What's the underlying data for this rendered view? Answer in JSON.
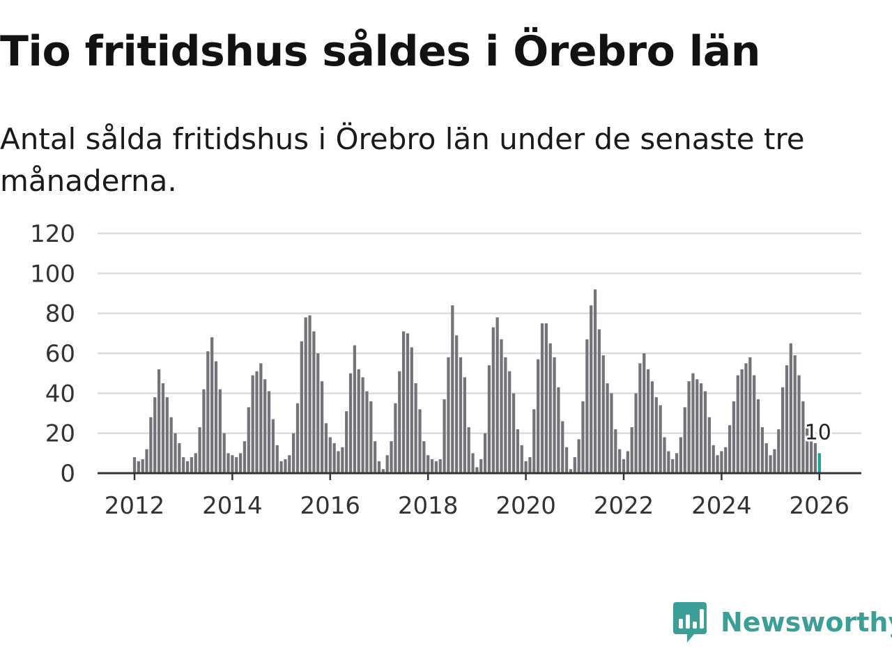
{
  "title": "Tio fritidshus såldes i Örebro län",
  "subtitle": "Antal sålda fritidshus i Örebro län under de senaste tre månaderna.",
  "brand": {
    "name": "Newsworthy",
    "icon": "newsworthy-logo-icon",
    "color": "#3b9f97"
  },
  "colors": {
    "bar": "#74737a",
    "highlight": "#1ea497",
    "grid": "#dcdcdc",
    "axis": "#333333"
  },
  "chart_data": {
    "type": "bar",
    "title": "Tio fritidshus såldes i Örebro län",
    "subtitle": "Antal sålda fritidshus i Örebro län under de senaste tre månaderna.",
    "xlabel": "",
    "ylabel": "",
    "ylim": [
      0,
      120
    ],
    "yticks": [
      0,
      20,
      40,
      60,
      80,
      100,
      120
    ],
    "xticks": [
      "2012",
      "2014",
      "2016",
      "2018",
      "2020",
      "2022",
      "2024",
      "2026"
    ],
    "x_start": "2012-01",
    "frequency": "monthly",
    "grid": true,
    "legend": "none",
    "highlight": {
      "date": "2026-01",
      "value": 10,
      "label": "10"
    },
    "series": [
      {
        "values": [
          8,
          6,
          7,
          12,
          28,
          38,
          52,
          45,
          38,
          28,
          20,
          15,
          8,
          6,
          8,
          10,
          23,
          42,
          61,
          68,
          56,
          42,
          20,
          10,
          9,
          8,
          10,
          16,
          33,
          49,
          51,
          55,
          47,
          41,
          27,
          14,
          6,
          7,
          9,
          20,
          35,
          66,
          78,
          79,
          71,
          60,
          46,
          25,
          18,
          15,
          11,
          13,
          31,
          50,
          64,
          52,
          48,
          41,
          36,
          16,
          6,
          2,
          9,
          16,
          35,
          51,
          71,
          70,
          63,
          45,
          32,
          16,
          9,
          7,
          6,
          7,
          37,
          58,
          84,
          69,
          58,
          48,
          23,
          10,
          3,
          7,
          20,
          54,
          73,
          78,
          67,
          58,
          51,
          40,
          22,
          14,
          6,
          8,
          32,
          57,
          75,
          75,
          65,
          58,
          43,
          26,
          13,
          2,
          8,
          17,
          36,
          67,
          84,
          92,
          72,
          59,
          45,
          40,
          22,
          12,
          7,
          11,
          23,
          40,
          55,
          60,
          52,
          46,
          38,
          34,
          18,
          11,
          7,
          10,
          18,
          33,
          46,
          50,
          47,
          45,
          41,
          28,
          14,
          9,
          11,
          13,
          24,
          36,
          49,
          52,
          55,
          58,
          49,
          37,
          23,
          15,
          9,
          12,
          22,
          43,
          54,
          65,
          59,
          49,
          36,
          24,
          18,
          15,
          10
        ]
      }
    ]
  }
}
